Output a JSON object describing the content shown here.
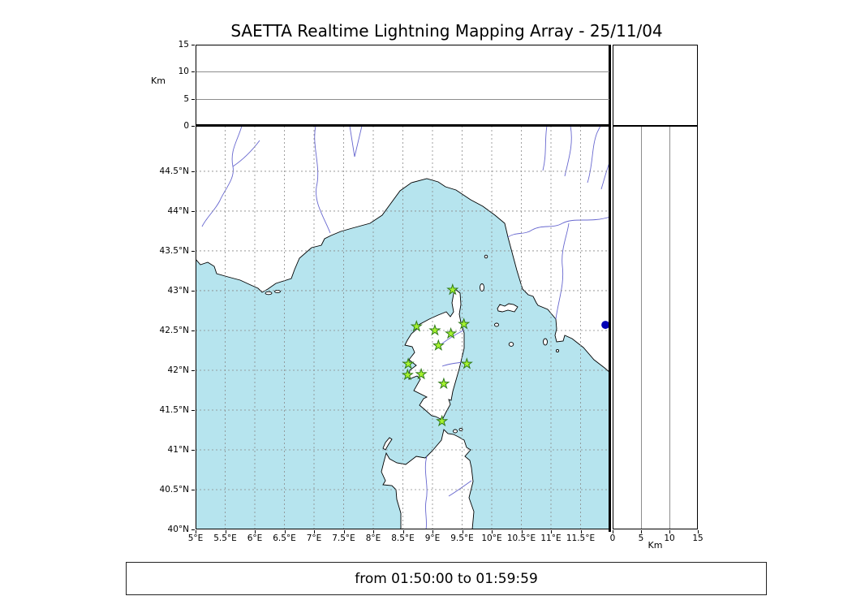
{
  "title": "SAETTA Realtime Lightning Mapping Array - 25/11/04",
  "footer": {
    "time_range": "from 01:50:00 to 01:59:59"
  },
  "axes": {
    "alt_unit": "Km",
    "alt_max_km": 15,
    "alt_tick_values": [
      0,
      5,
      10,
      15
    ],
    "alt_tick_labels": [
      "0",
      "5",
      "10",
      "15"
    ],
    "alt_gridlines_km": [
      5,
      10
    ],
    "lon_tick_labels": [
      "5°E",
      "5.5°E",
      "6°E",
      "6.5°E",
      "7°E",
      "7.5°E",
      "8°E",
      "8.5°E",
      "9°E",
      "9.5°E",
      "10°E",
      "10.5°E",
      "11°E",
      "11.5°E"
    ],
    "lat_tick_labels": [
      "40°N",
      "40.5°N",
      "41°N",
      "41.5°N",
      "42°N",
      "42.5°N",
      "43°N",
      "43.5°N",
      "44°N",
      "44.5°N"
    ]
  },
  "map": {
    "lon_min": 5.0,
    "lon_max": 12.0,
    "lat_min": 40.0,
    "lat_max": 45.07,
    "grid_step_deg": 0.5,
    "sea_color": "#b6e4ee",
    "land_color": "#ffffff",
    "coast_color": "#000000",
    "river_color": "#6767cf",
    "grid_color": "#8a8a8a",
    "station_fill": "#a6f32f",
    "station_edge": "#2f7a18",
    "event_color": "#0000b4",
    "stations": [
      {
        "lon": 9.34,
        "lat": 43.01
      },
      {
        "lon": 8.73,
        "lat": 42.55
      },
      {
        "lon": 9.04,
        "lat": 42.5
      },
      {
        "lon": 9.31,
        "lat": 42.46
      },
      {
        "lon": 9.53,
        "lat": 42.58
      },
      {
        "lon": 9.1,
        "lat": 42.31
      },
      {
        "lon": 8.59,
        "lat": 42.08
      },
      {
        "lon": 9.58,
        "lat": 42.08
      },
      {
        "lon": 8.58,
        "lat": 41.94
      },
      {
        "lon": 8.81,
        "lat": 41.95
      },
      {
        "lon": 9.19,
        "lat": 41.83
      },
      {
        "lon": 9.16,
        "lat": 41.36
      }
    ],
    "events": [
      {
        "lon": 11.92,
        "lat": 42.57
      }
    ]
  }
}
